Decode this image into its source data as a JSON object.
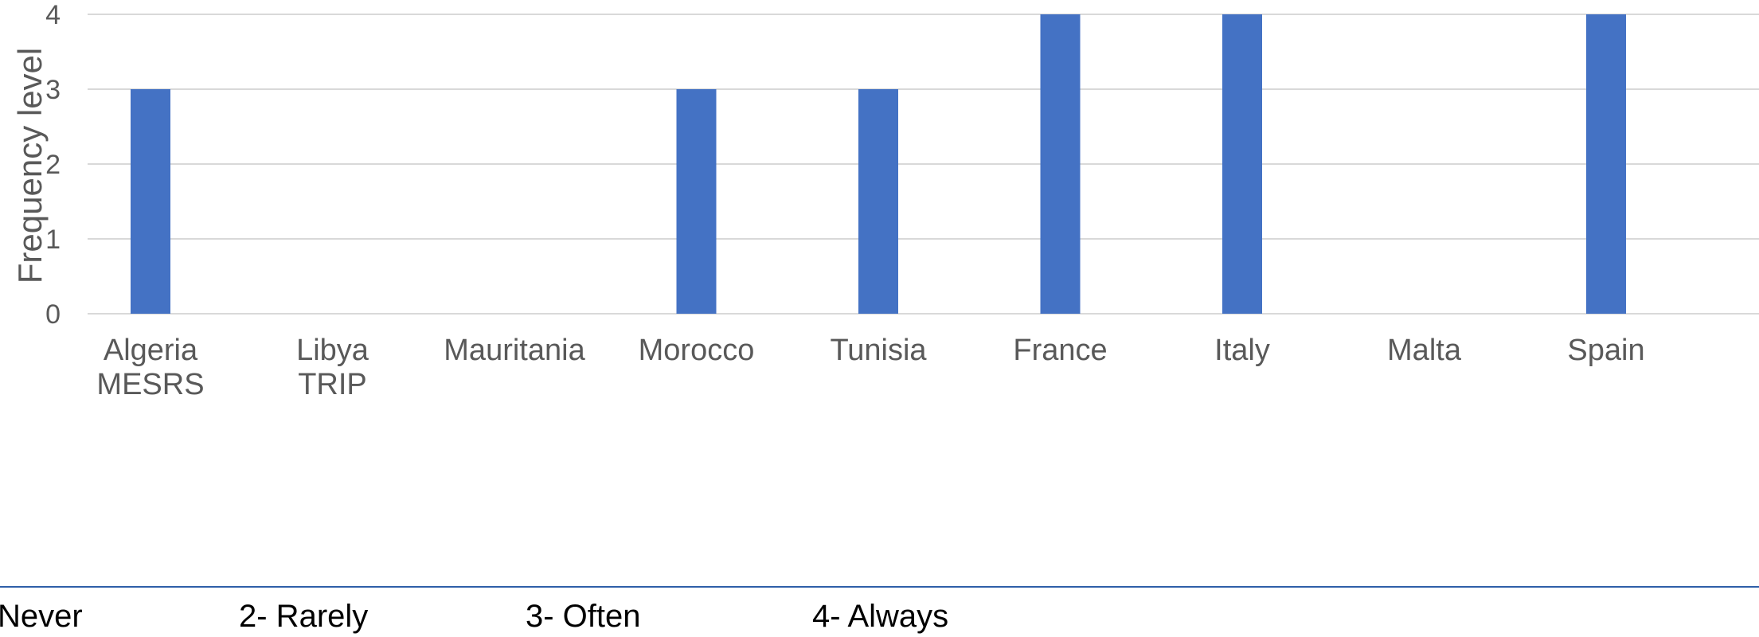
{
  "chart_data": {
    "type": "bar",
    "ylabel": "Frequency level",
    "categories": [
      [
        "Algeria",
        "MESRS"
      ],
      [
        "Libya",
        "TRIP"
      ],
      [
        "Mauritania"
      ],
      [
        "Morocco"
      ],
      [
        "Tunisia"
      ],
      [
        "France"
      ],
      [
        "Italy"
      ],
      [
        "Malta"
      ],
      [
        "Spain"
      ]
    ],
    "values": [
      3,
      0,
      0,
      3,
      3,
      4,
      4,
      0,
      4
    ],
    "yticks": [
      "0",
      "1",
      "2",
      "3",
      "4"
    ],
    "ylim": [
      0,
      4
    ],
    "bar_color": "#4472c4",
    "grid": true
  },
  "legend": {
    "items": [
      "Never",
      "2- Rarely",
      "3- Often",
      "4- Always"
    ]
  }
}
